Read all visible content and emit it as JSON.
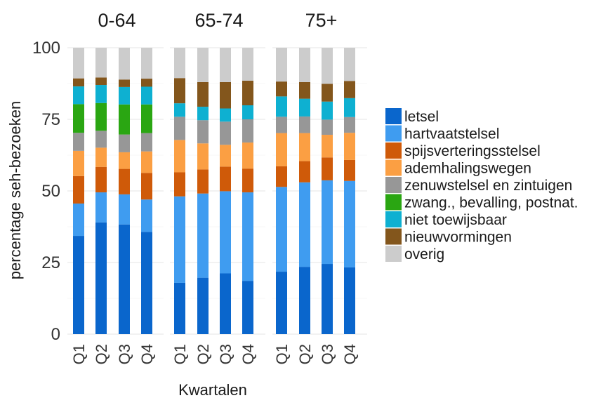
{
  "chart_data": {
    "type": "bar",
    "stacked": true,
    "xlabel": "Kwartalen",
    "ylabel": "percentage seh-bezoeken",
    "ylim": [
      0,
      100
    ],
    "yticks": [
      "0",
      "25",
      "50",
      "75",
      "100"
    ],
    "legend_position": "right",
    "grid": true,
    "categories": [
      "Q1",
      "Q2",
      "Q3",
      "Q4"
    ],
    "groups": [
      {
        "name": "0-64",
        "series": [
          {
            "name": "letsel",
            "color": "#0a66cc",
            "values": [
              34.3,
              39.0,
              38.3,
              35.7
            ]
          },
          {
            "name": "hartvaatstelsel",
            "color": "#3f9cf0",
            "values": [
              11.3,
              10.5,
              10.5,
              11.3
            ]
          },
          {
            "name": "spijsverteringsstelsel",
            "color": "#cf5a09",
            "values": [
              9.6,
              8.9,
              8.9,
              9.3
            ]
          },
          {
            "name": "ademhalingswegen",
            "color": "#fb9f43",
            "values": [
              8.8,
              6.7,
              5.8,
              7.5
            ]
          },
          {
            "name": "zenuwstelsel en zintuigen",
            "color": "#979797",
            "values": [
              6.3,
              5.9,
              6.2,
              6.4
            ]
          },
          {
            "name": "zwang., bevalling, postnat.",
            "color": "#2aa612",
            "values": [
              10.0,
              9.7,
              10.5,
              10.0
            ]
          },
          {
            "name": "niet toewijsbaar",
            "color": "#0eb0d1",
            "values": [
              6.2,
              6.3,
              6.1,
              6.2
            ]
          },
          {
            "name": "nieuwvormingen",
            "color": "#83561c",
            "values": [
              2.8,
              2.6,
              2.6,
              2.8
            ]
          },
          {
            "name": "overig",
            "color": "#cccccc",
            "values": [
              10.7,
              10.4,
              11.1,
              10.8
            ]
          }
        ]
      },
      {
        "name": "65-74",
        "series": [
          {
            "name": "letsel",
            "color": "#0a66cc",
            "values": [
              17.9,
              19.7,
              21.2,
              18.6
            ]
          },
          {
            "name": "hartvaatstelsel",
            "color": "#3f9cf0",
            "values": [
              30.2,
              29.4,
              28.7,
              30.9
            ]
          },
          {
            "name": "spijsverteringsstelsel",
            "color": "#cf5a09",
            "values": [
              8.4,
              8.4,
              8.6,
              8.3
            ]
          },
          {
            "name": "ademhalingswegen",
            "color": "#fb9f43",
            "values": [
              11.3,
              9.1,
              7.6,
              9.1
            ]
          },
          {
            "name": "zenuwstelsel en zintuigen",
            "color": "#979797",
            "values": [
              8.1,
              8.1,
              8.1,
              8.1
            ]
          },
          {
            "name": "zwang., bevalling, postnat.",
            "color": "#2aa612",
            "values": [
              0,
              0,
              0,
              0
            ]
          },
          {
            "name": "niet toewijsbaar",
            "color": "#0eb0d1",
            "values": [
              4.7,
              4.7,
              4.6,
              4.9
            ]
          },
          {
            "name": "nieuwvormingen",
            "color": "#83561c",
            "values": [
              8.8,
              8.6,
              9.2,
              8.6
            ]
          },
          {
            "name": "overig",
            "color": "#cccccc",
            "values": [
              10.6,
              12.0,
              12.0,
              11.5
            ]
          }
        ]
      },
      {
        "name": "75+",
        "series": [
          {
            "name": "letsel",
            "color": "#0a66cc",
            "values": [
              21.8,
              23.5,
              24.5,
              23.3
            ]
          },
          {
            "name": "hartvaatstelsel",
            "color": "#3f9cf0",
            "values": [
              29.6,
              29.5,
              29.2,
              30.2
            ]
          },
          {
            "name": "spijsverteringsstelsel",
            "color": "#cf5a09",
            "values": [
              7.2,
              7.4,
              8.0,
              7.3
            ]
          },
          {
            "name": "ademhalingswegen",
            "color": "#fb9f43",
            "values": [
              11.6,
              9.8,
              7.9,
              9.5
            ]
          },
          {
            "name": "zenuwstelsel en zintuigen",
            "color": "#979797",
            "values": [
              5.7,
              5.8,
              5.3,
              5.5
            ]
          },
          {
            "name": "zwang., bevalling, postnat.",
            "color": "#2aa612",
            "values": [
              0,
              0,
              0,
              0
            ]
          },
          {
            "name": "niet toewijsbaar",
            "color": "#0eb0d1",
            "values": [
              7.1,
              6.2,
              6.3,
              6.6
            ]
          },
          {
            "name": "nieuwvormingen",
            "color": "#83561c",
            "values": [
              5.2,
              5.8,
              6.2,
              6.0
            ]
          },
          {
            "name": "overig",
            "color": "#cccccc",
            "values": [
              11.8,
              12.0,
              12.6,
              11.6
            ]
          }
        ]
      }
    ],
    "legend": [
      {
        "label": "letsel",
        "color": "#0a66cc"
      },
      {
        "label": "hartvaatstelsel",
        "color": "#3f9cf0"
      },
      {
        "label": "spijsverteringsstelsel",
        "color": "#cf5a09"
      },
      {
        "label": "ademhalingswegen",
        "color": "#fb9f43"
      },
      {
        "label": "zenuwstelsel en zintuigen",
        "color": "#979797"
      },
      {
        "label": "zwang., bevalling, postnat.",
        "color": "#2aa612"
      },
      {
        "label": "niet toewijsbaar",
        "color": "#0eb0d1"
      },
      {
        "label": "nieuwvormingen",
        "color": "#83561c"
      },
      {
        "label": "overig",
        "color": "#cccccc"
      }
    ]
  }
}
